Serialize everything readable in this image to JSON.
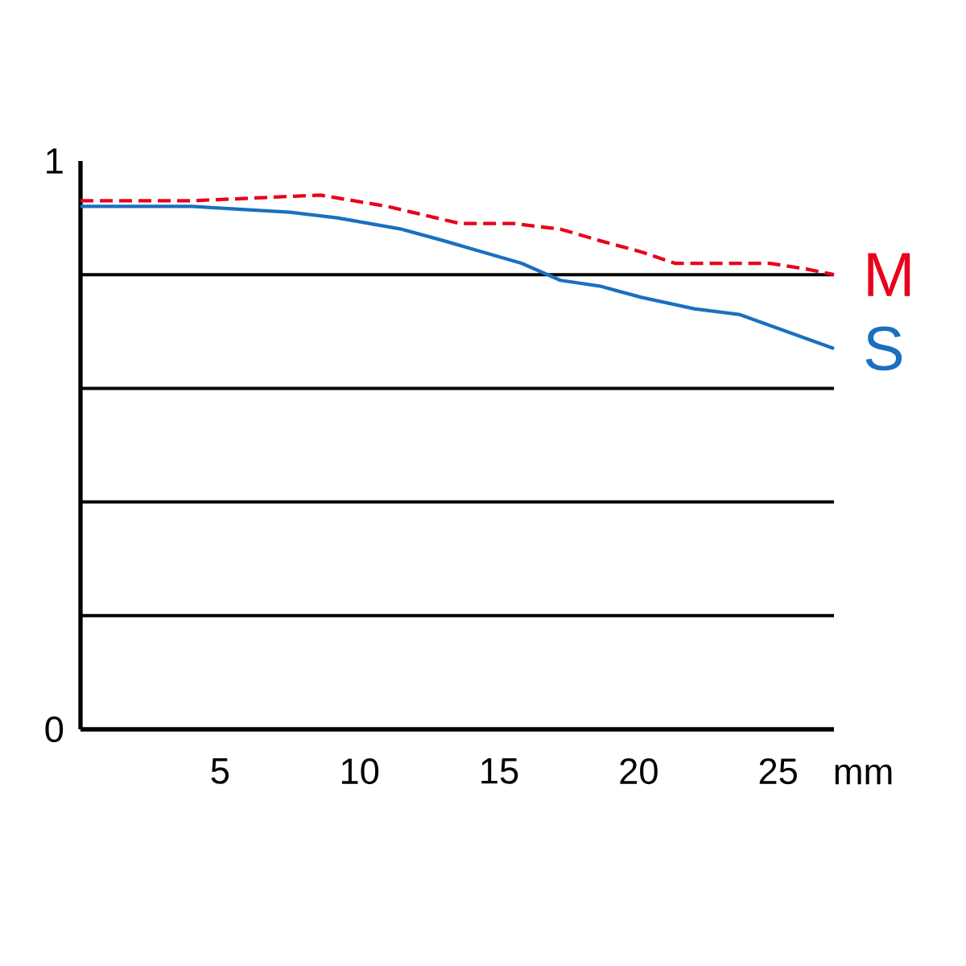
{
  "chart_data": {
    "type": "line",
    "xlabel": "mm",
    "xlim": [
      0,
      27
    ],
    "ylim": [
      0,
      1
    ],
    "xticks": [
      5,
      10,
      15,
      20,
      25
    ],
    "yticks": [
      0,
      {
        "value": 0.2,
        "label": null
      },
      {
        "value": 0.4,
        "label": null
      },
      {
        "value": 0.6,
        "label": null
      },
      {
        "value": 0.8,
        "label": null
      },
      1
    ],
    "grid": "y",
    "legend": false,
    "series": [
      {
        "name": "M",
        "color": "#e8001c",
        "line_style": "dashed",
        "x": [
          0,
          4,
          8.6,
          11,
          13.6,
          15.5,
          17.2,
          18.6,
          20.1,
          21.3,
          22.4,
          23.5,
          24.7,
          26,
          27
        ],
        "values": [
          0.93,
          0.93,
          0.94,
          0.92,
          0.89,
          0.89,
          0.88,
          0.86,
          0.84,
          0.82,
          0.82,
          0.82,
          0.82,
          0.81,
          0.8
        ]
      },
      {
        "name": "S",
        "color": "#1a6fc0",
        "line_style": "solid",
        "x": [
          0,
          4,
          7.5,
          9.2,
          11.5,
          13,
          14.4,
          15.8,
          17.2,
          18.6,
          20.1,
          22,
          23.6,
          25.3,
          27
        ],
        "values": [
          0.92,
          0.92,
          0.91,
          0.9,
          0.88,
          0.86,
          0.84,
          0.82,
          0.79,
          0.78,
          0.76,
          0.74,
          0.73,
          0.7,
          0.67
        ]
      }
    ]
  }
}
